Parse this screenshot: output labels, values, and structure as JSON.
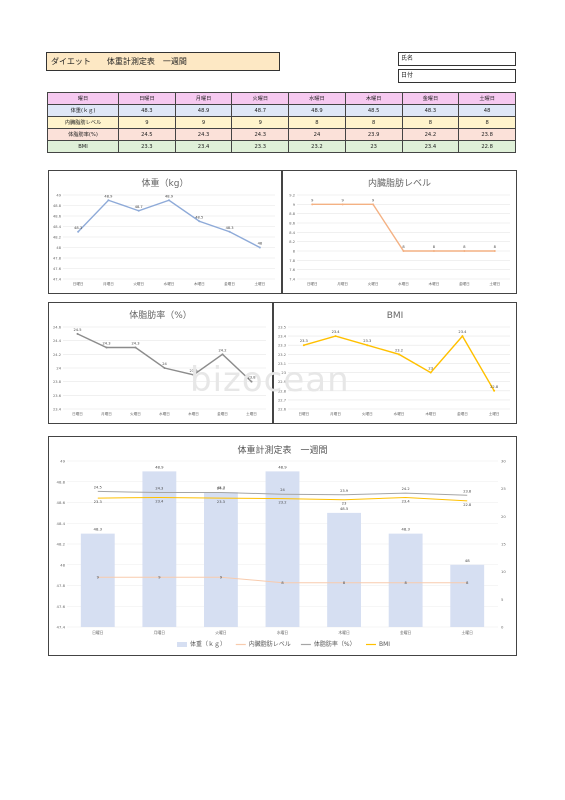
{
  "header": {
    "title": "ダイエット　　体重計測定表　一週間",
    "name_label": "氏名",
    "date_label": "日付"
  },
  "table": {
    "header_label": "曜日",
    "days": [
      "日曜日",
      "月曜日",
      "火曜日",
      "水曜日",
      "木曜日",
      "金曜日",
      "土曜日"
    ],
    "rows": [
      {
        "label": "体重(ｋｇ)",
        "values": [
          "48.3",
          "48.9",
          "48.7",
          "48.9",
          "48.5",
          "48.3",
          "48"
        ]
      },
      {
        "label": "内臓脂肪レベル",
        "values": [
          "9",
          "9",
          "9",
          "8",
          "8",
          "8",
          "8"
        ]
      },
      {
        "label": "体脂肪率(%)",
        "values": [
          "24.5",
          "24.3",
          "24.3",
          "24",
          "23.9",
          "24.2",
          "23.8"
        ]
      },
      {
        "label": "BMI",
        "values": [
          "23.3",
          "23.4",
          "23.3",
          "23.2",
          "23",
          "23.4",
          "22.8"
        ]
      }
    ]
  },
  "watermark": "bizocean",
  "chart_data": [
    {
      "type": "line",
      "title": "体重（kg）",
      "categories": [
        "日曜日",
        "月曜日",
        "火曜日",
        "水曜日",
        "木曜日",
        "金曜日",
        "土曜日"
      ],
      "values": [
        48.3,
        48.9,
        48.7,
        48.9,
        48.5,
        48.3,
        48
      ],
      "ylim": [
        47.4,
        49
      ],
      "yticks": [
        47.4,
        47.6,
        47.8,
        48,
        48.2,
        48.4,
        48.6,
        48.8,
        49
      ],
      "color": "#8eaad8"
    },
    {
      "type": "line",
      "title": "内臓脂肪レベル",
      "categories": [
        "日曜日",
        "月曜日",
        "火曜日",
        "水曜日",
        "木曜日",
        "金曜日",
        "土曜日"
      ],
      "values": [
        9,
        9,
        9,
        8,
        8,
        8,
        8
      ],
      "ylim": [
        7.4,
        9.2
      ],
      "yticks": [
        7.4,
        7.6,
        7.8,
        8,
        8.2,
        8.4,
        8.6,
        8.8,
        9,
        9.2
      ],
      "color": "#f4b183"
    },
    {
      "type": "line",
      "title": "体脂肪率（%）",
      "categories": [
        "日曜日",
        "月曜日",
        "火曜日",
        "水曜日",
        "木曜日",
        "金曜日",
        "土曜日"
      ],
      "values": [
        24.5,
        24.3,
        24.3,
        24,
        23.9,
        24.2,
        23.8
      ],
      "ylim": [
        23.4,
        24.6
      ],
      "yticks": [
        23.4,
        23.6,
        23.8,
        24,
        24.2,
        24.4,
        24.6
      ],
      "color": "#8c8c8c"
    },
    {
      "type": "line",
      "title": "BMI",
      "categories": [
        "日曜日",
        "月曜日",
        "火曜日",
        "水曜日",
        "木曜日",
        "金曜日",
        "土曜日"
      ],
      "values": [
        23.3,
        23.4,
        23.3,
        23.2,
        23,
        23.4,
        22.8
      ],
      "ylim": [
        22.6,
        23.5
      ],
      "yticks": [
        22.6,
        22.7,
        22.8,
        22.9,
        23,
        23.1,
        23.2,
        23.3,
        23.4,
        23.5
      ],
      "color": "#ffc000"
    },
    {
      "type": "bar",
      "title": "体重計測定表　一週間",
      "categories": [
        "日曜日",
        "月曜日",
        "火曜日",
        "水曜日",
        "木曜日",
        "金曜日",
        "土曜日"
      ],
      "series": [
        {
          "name": "体重（ｋｇ）",
          "values": [
            48.3,
            48.9,
            48.7,
            48.9,
            48.5,
            48.3,
            48
          ],
          "color": "#d6dff2",
          "axis": "left"
        },
        {
          "name": "内臓脂肪レベル",
          "values": [
            9,
            9,
            9,
            8,
            8,
            8,
            8
          ],
          "color": "#f8cbad",
          "axis": "right"
        },
        {
          "name": "体脂肪率（%）",
          "values": [
            24.5,
            24.3,
            24.3,
            24,
            23.9,
            24.2,
            23.8
          ],
          "color": "#a5a5a5",
          "axis": "right"
        },
        {
          "name": "BMI",
          "values": [
            23.3,
            23.4,
            23.3,
            23.2,
            23,
            23.4,
            22.8
          ],
          "color": "#ffc000",
          "axis": "right"
        }
      ],
      "ylim_left": [
        47.4,
        49
      ],
      "yticks_left": [
        47.4,
        47.6,
        47.8,
        48,
        48.2,
        48.4,
        48.6,
        48.8,
        49
      ],
      "ylim_right": [
        0,
        30
      ],
      "yticks_right": [
        0,
        5,
        10,
        15,
        20,
        25,
        30
      ]
    }
  ]
}
